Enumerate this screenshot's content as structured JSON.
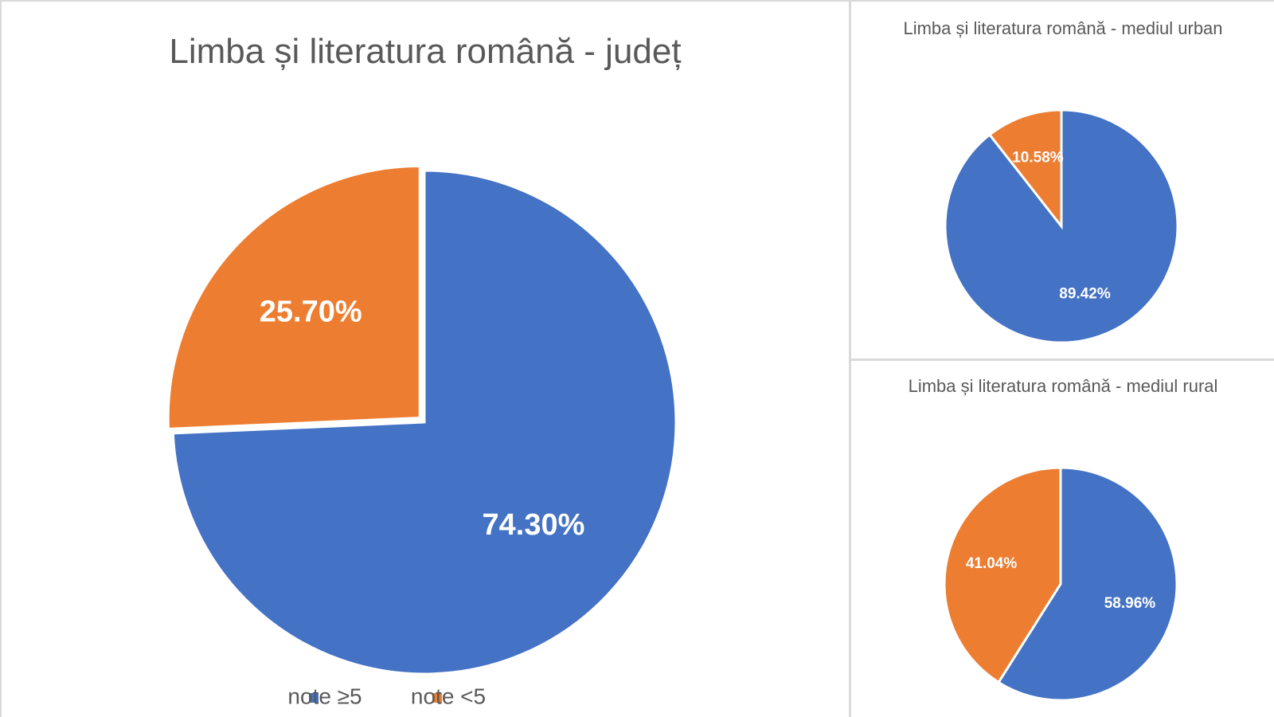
{
  "chart_data": [
    {
      "type": "pie",
      "title": "Limba și literatura română - județ",
      "categories": [
        "note ≥5",
        "note <5"
      ],
      "values": [
        74.3,
        25.7
      ],
      "value_labels": [
        "74.30%",
        "25.70%"
      ],
      "colors": [
        "#4472c4",
        "#ed7d31"
      ],
      "legend": "bottom"
    },
    {
      "type": "pie",
      "title": "Limba și literatura română - mediul urban",
      "values": [
        89.42,
        10.58
      ],
      "value_labels": [
        "89.42%",
        "10.58%"
      ],
      "colors": [
        "#4472c4",
        "#ed7d31"
      ]
    },
    {
      "type": "pie",
      "title": "Limba și literatura română - mediul rural",
      "values": [
        58.96,
        41.04
      ],
      "value_labels": [
        "58.96%",
        "41.04%"
      ],
      "colors": [
        "#4472c4",
        "#ed7d31"
      ]
    }
  ]
}
